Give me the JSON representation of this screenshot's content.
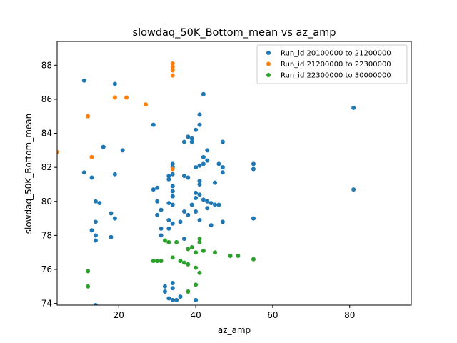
{
  "chart_data": {
    "type": "scatter",
    "title": "slowdaq_50K_Bottom_mean vs az_amp",
    "xlabel": "az_amp",
    "ylabel": "slowdaq_50K_Bottom_mean",
    "xlim": [
      4,
      96
    ],
    "ylim": [
      73.9,
      89.4
    ],
    "xticks": [
      20,
      40,
      60,
      80
    ],
    "yticks": [
      74,
      76,
      78,
      80,
      82,
      84,
      86,
      88
    ],
    "grid": false,
    "legend_position": "upper-right",
    "series": [
      {
        "name": "Run_id 20100000 to 21200000",
        "color": "#1f77b4",
        "points": [
          [
            11,
            87.1
          ],
          [
            19,
            86.9
          ],
          [
            42,
            86.3
          ],
          [
            41,
            85.1
          ],
          [
            81,
            85.5
          ],
          [
            29,
            84.5
          ],
          [
            41,
            84.5
          ],
          [
            40,
            84.2
          ],
          [
            38,
            83.8
          ],
          [
            39,
            83.7
          ],
          [
            37,
            83.5
          ],
          [
            39,
            83.5
          ],
          [
            47,
            83.5
          ],
          [
            16,
            83.2
          ],
          [
            21,
            83.0
          ],
          [
            43,
            83.0
          ],
          [
            42,
            82.6
          ],
          [
            34,
            82.2
          ],
          [
            42,
            82.2
          ],
          [
            46,
            82.2
          ],
          [
            47,
            82.0
          ],
          [
            55,
            82.2
          ],
          [
            55,
            81.9
          ],
          [
            34,
            82.0
          ],
          [
            40,
            82.0
          ],
          [
            41,
            82.1
          ],
          [
            43,
            82.4
          ],
          [
            41,
            81.2
          ],
          [
            11,
            81.7
          ],
          [
            19,
            81.6
          ],
          [
            34,
            81.6
          ],
          [
            33,
            81.5
          ],
          [
            37,
            81.5
          ],
          [
            38,
            81.4
          ],
          [
            47,
            81.7
          ],
          [
            13,
            81.4
          ],
          [
            33,
            81.3
          ],
          [
            45,
            81.1
          ],
          [
            41,
            81.0
          ],
          [
            34,
            80.9
          ],
          [
            30,
            80.8
          ],
          [
            29,
            80.7
          ],
          [
            34,
            80.6
          ],
          [
            40,
            80.5
          ],
          [
            41,
            80.4
          ],
          [
            34,
            80.3
          ],
          [
            40,
            80.2
          ],
          [
            42,
            80.1
          ],
          [
            43,
            80.0
          ],
          [
            44,
            79.9
          ],
          [
            45,
            79.8
          ],
          [
            46,
            79.8
          ],
          [
            81,
            80.7
          ],
          [
            14,
            80.0
          ],
          [
            15,
            79.9
          ],
          [
            30,
            80.0
          ],
          [
            33,
            79.9
          ],
          [
            34,
            79.8
          ],
          [
            39,
            79.8
          ],
          [
            37,
            79.4
          ],
          [
            38,
            79.2
          ],
          [
            43,
            79.6
          ],
          [
            40,
            79.4
          ],
          [
            18,
            79.3
          ],
          [
            19,
            79.0
          ],
          [
            30,
            79.2
          ],
          [
            31,
            79.5
          ],
          [
            14,
            78.8
          ],
          [
            33,
            78.9
          ],
          [
            34,
            78.7
          ],
          [
            36,
            78.8
          ],
          [
            41,
            78.9
          ],
          [
            44,
            78.6
          ],
          [
            47,
            78.8
          ],
          [
            55,
            79.0
          ],
          [
            31,
            78.4
          ],
          [
            33,
            78.4
          ],
          [
            13,
            78.3
          ],
          [
            31,
            78.0
          ],
          [
            14,
            78.0
          ],
          [
            18,
            77.9
          ],
          [
            14,
            77.7
          ],
          [
            37,
            77.8
          ],
          [
            34,
            75.2
          ],
          [
            32,
            75.0
          ],
          [
            34,
            74.9
          ],
          [
            32,
            74.7
          ],
          [
            36,
            74.4
          ],
          [
            33,
            74.3
          ],
          [
            34,
            74.2
          ],
          [
            35,
            74.2
          ],
          [
            40,
            74.2
          ],
          [
            14,
            73.9
          ]
        ]
      },
      {
        "name": "Run_id 21200000 to 22300000",
        "color": "#ff7f0e",
        "points": [
          [
            34,
            88.1
          ],
          [
            34,
            87.9
          ],
          [
            34,
            87.7
          ],
          [
            34,
            87.4
          ],
          [
            19,
            86.1
          ],
          [
            22,
            86.1
          ],
          [
            27,
            85.7
          ],
          [
            12,
            85.0
          ],
          [
            13,
            82.6
          ],
          [
            4,
            82.9
          ],
          [
            34,
            81.9
          ]
        ]
      },
      {
        "name": "Run_id 22300000 to 30000000",
        "color": "#2ca02c",
        "points": [
          [
            41,
            77.8
          ],
          [
            32,
            77.7
          ],
          [
            33,
            77.6
          ],
          [
            35,
            77.6
          ],
          [
            41,
            77.6
          ],
          [
            38,
            77.2
          ],
          [
            39,
            77.3
          ],
          [
            42,
            77.1
          ],
          [
            40,
            77.0
          ],
          [
            45,
            77.0
          ],
          [
            49,
            76.8
          ],
          [
            51,
            76.8
          ],
          [
            34,
            76.7
          ],
          [
            55,
            76.6
          ],
          [
            29,
            76.5
          ],
          [
            30,
            76.5
          ],
          [
            31,
            76.5
          ],
          [
            36,
            76.5
          ],
          [
            37,
            76.4
          ],
          [
            38,
            76.3
          ],
          [
            40,
            76.1
          ],
          [
            41,
            75.8
          ],
          [
            12,
            75.9
          ],
          [
            12,
            75.0
          ],
          [
            40,
            75.1
          ],
          [
            38,
            74.7
          ]
        ]
      }
    ]
  }
}
